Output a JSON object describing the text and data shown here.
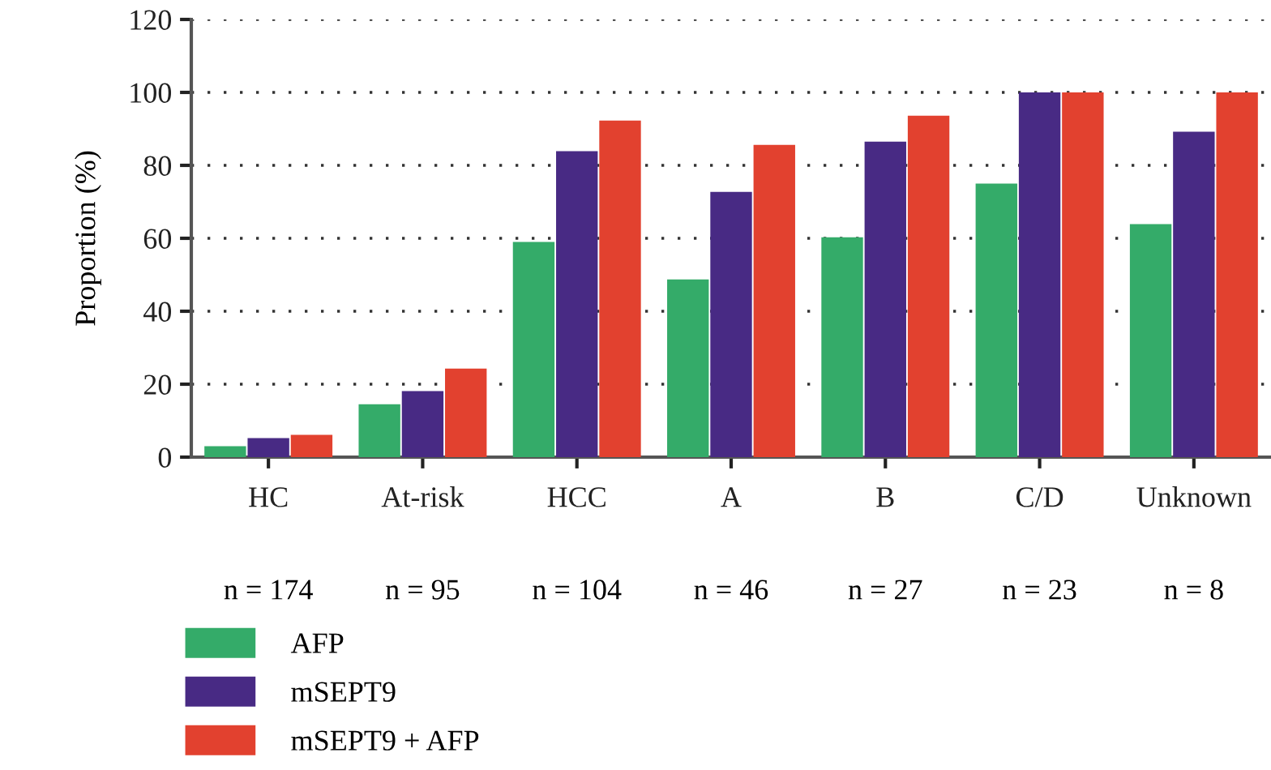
{
  "chart_data": {
    "type": "bar",
    "ylabel": "Proportion (%)",
    "categories": [
      "HC",
      "At-risk",
      "HCC",
      "A",
      "B",
      "C/D",
      "Unknown"
    ],
    "series": [
      {
        "name": "AFP",
        "color": "#34ab69",
        "values": [
          3.0,
          14.5,
          59.0,
          48.7,
          60.3,
          75.0,
          63.9
        ]
      },
      {
        "name": "mSEPT9",
        "color": "#482a84",
        "values": [
          5.2,
          18.1,
          83.9,
          72.7,
          86.5,
          100,
          89.2
        ]
      },
      {
        "name": "mSEPT9 + AFP",
        "color": "#e2412f",
        "values": [
          6.1,
          24.3,
          92.3,
          85.6,
          93.6,
          100,
          100
        ]
      }
    ],
    "annotations": [
      "n = 174",
      "n = 95",
      "n = 104",
      "n = 46",
      "n = 27",
      "n = 23",
      "n = 8"
    ],
    "ylim": [
      0,
      120
    ],
    "yticks": [
      0,
      20,
      40,
      60,
      80,
      100,
      120
    ],
    "grid": "y",
    "legend": "bottom left"
  }
}
